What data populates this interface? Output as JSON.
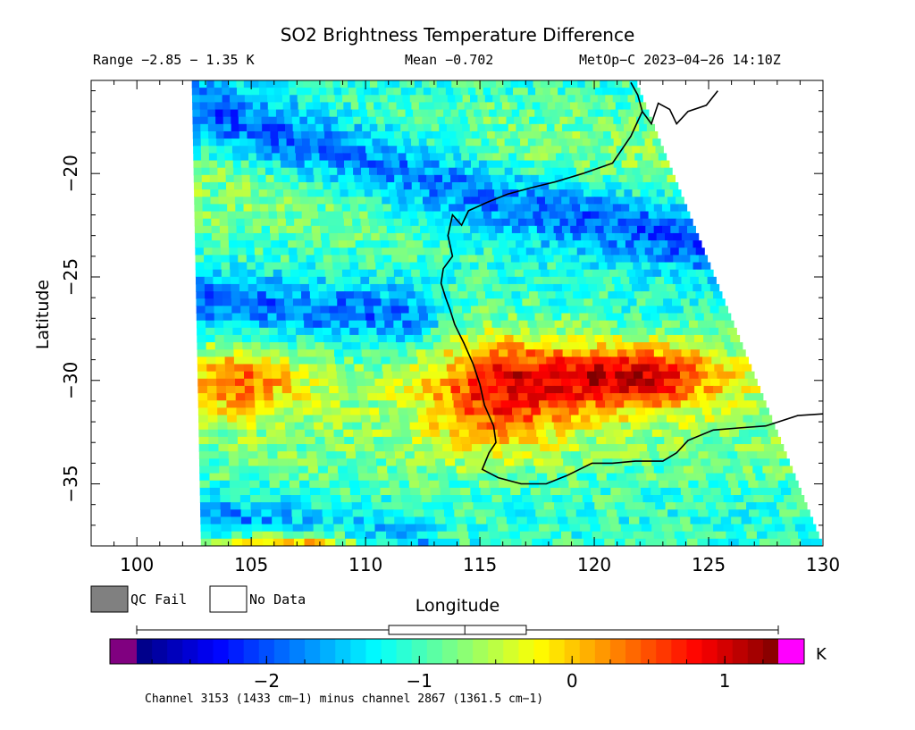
{
  "chart_data": {
    "type": "heatmap",
    "title": "SO2 Brightness Temperature Difference",
    "header": {
      "range": "Range −2.85 − 1.35 K",
      "mean": "Mean −0.702",
      "platform": "MetOp−C 2023−04−26 14:10Z"
    },
    "xlabel": "Longitude",
    "ylabel": "Latitude",
    "xlim": [
      98,
      130
    ],
    "ylim": [
      -38,
      -15.5
    ],
    "x_ticks": [
      100,
      105,
      110,
      115,
      120,
      125,
      130
    ],
    "x_tick_labels": [
      "100",
      "105",
      "110",
      "115",
      "120",
      "125",
      "130"
    ],
    "y_ticks": [
      -20,
      -25,
      -30,
      -35
    ],
    "y_tick_labels": [
      "−20",
      "−25",
      "−30",
      "−35"
    ],
    "value_range": [
      -2.85,
      1.35
    ],
    "mean": -0.702,
    "colorbar": {
      "min": -2.85,
      "max": 1.35,
      "unit": "K",
      "ticks": [
        -2,
        -1,
        0,
        1
      ],
      "tick_labels": [
        "−2",
        "−1",
        "0",
        "1"
      ],
      "colors": [
        "#00007f",
        "#0000ff",
        "#0080ff",
        "#00ffff",
        "#80ff80",
        "#ffff00",
        "#ff8000",
        "#ff0000",
        "#7f0000"
      ],
      "under_color": "#800080",
      "over_color": "#ff00ff",
      "mean_box": [
        -1.2,
        -0.3
      ],
      "mean_marker": -0.702
    },
    "legend": [
      {
        "label": "QC Fail",
        "color": "#808080"
      },
      {
        "label": "No Data",
        "color": "#ffffff"
      }
    ],
    "swath": {
      "top": [
        [
          102.4,
          -15.5
        ],
        [
          121.8,
          -15.5
        ]
      ],
      "bottom": [
        [
          102.8,
          -38
        ],
        [
          130,
          -38
        ]
      ]
    },
    "field_features": [
      {
        "type": "band",
        "center": [
          [
            103,
            -17.2
          ],
          [
            110,
            -19.4
          ],
          [
            116,
            -21.3
          ],
          [
            122,
            -22.6
          ],
          [
            127,
            -23.5
          ]
        ],
        "width_deg": 2.4,
        "value": -2.0
      },
      {
        "type": "band",
        "center": [
          [
            101,
            -26
          ],
          [
            107,
            -26.6
          ],
          [
            112,
            -27
          ]
        ],
        "width_deg": 1.9,
        "value": -1.7
      },
      {
        "type": "blob",
        "center": [
          121.5,
          -29.8
        ],
        "radius": [
          4.2,
          1.6
        ],
        "value": 0.9
      },
      {
        "type": "blob",
        "center": [
          115.8,
          -30.5
        ],
        "radius": [
          3.2,
          2.8
        ],
        "value": 0.5
      },
      {
        "type": "blob",
        "center": [
          104.5,
          -30
        ],
        "radius": [
          2.6,
          1.6
        ],
        "value": 0.25
      },
      {
        "type": "band",
        "center": [
          [
            102,
            -36.4
          ],
          [
            108,
            -37.4
          ],
          [
            112,
            -38
          ]
        ],
        "width_deg": 1.5,
        "value": -1.6
      },
      {
        "type": "blob",
        "center": [
          107,
          -38.2
        ],
        "radius": [
          3.4,
          0.9
        ],
        "value": 1.05
      }
    ],
    "coastline": [
      [
        [
          121.6,
          -15.6
        ],
        [
          121.9,
          -16.2
        ],
        [
          122.1,
          -17.0
        ],
        [
          122.5,
          -17.6
        ],
        [
          122.8,
          -16.6
        ],
        [
          123.3,
          -16.9
        ],
        [
          123.6,
          -17.6
        ],
        [
          124.1,
          -17.0
        ],
        [
          124.9,
          -16.7
        ],
        [
          125.4,
          -16.0
        ]
      ],
      [
        [
          122.1,
          -17.0
        ],
        [
          121.6,
          -18.2
        ],
        [
          120.8,
          -19.5
        ],
        [
          119.5,
          -20.0
        ],
        [
          118.3,
          -20.4
        ],
        [
          117.2,
          -20.7
        ],
        [
          116.2,
          -21.0
        ],
        [
          115.3,
          -21.4
        ],
        [
          114.5,
          -21.8
        ],
        [
          114.2,
          -22.5
        ],
        [
          113.8,
          -22.0
        ],
        [
          113.6,
          -23.0
        ],
        [
          113.8,
          -24.0
        ],
        [
          113.4,
          -24.6
        ],
        [
          113.3,
          -25.3
        ],
        [
          113.5,
          -26.0
        ],
        [
          113.7,
          -26.6
        ],
        [
          113.9,
          -27.3
        ],
        [
          114.3,
          -28.2
        ],
        [
          114.7,
          -29.2
        ],
        [
          115.0,
          -30.2
        ],
        [
          115.2,
          -31.2
        ],
        [
          115.6,
          -32.2
        ],
        [
          115.7,
          -33.0
        ],
        [
          115.4,
          -33.5
        ],
        [
          115.1,
          -34.3
        ],
        [
          115.8,
          -34.7
        ],
        [
          116.8,
          -35.0
        ],
        [
          117.9,
          -35.0
        ],
        [
          118.8,
          -34.6
        ],
        [
          119.9,
          -34.0
        ],
        [
          120.8,
          -34.0
        ],
        [
          121.8,
          -33.9
        ],
        [
          123.0,
          -33.9
        ],
        [
          123.6,
          -33.5
        ],
        [
          124.1,
          -32.9
        ],
        [
          125.2,
          -32.4
        ],
        [
          126.3,
          -32.3
        ],
        [
          127.5,
          -32.2
        ],
        [
          128.9,
          -31.7
        ],
        [
          130.2,
          -31.6
        ]
      ]
    ],
    "footnote": "Channel 3153 (1433 cm−1) minus channel 2867 (1361.5 cm−1)"
  }
}
